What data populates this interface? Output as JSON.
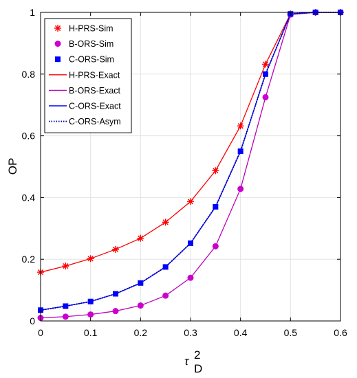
{
  "chart_data": {
    "type": "line",
    "xlabel": "τ",
    "xlabel_superscript": "2",
    "xlabel_subscript": "D",
    "ylabel": "OP",
    "xlim": [
      0,
      0.6
    ],
    "ylim": [
      0,
      1
    ],
    "xticks": [
      "0",
      "0.1",
      "0.2",
      "0.3",
      "0.4",
      "0.5",
      "0.6"
    ],
    "yticks": [
      "0",
      "0.2",
      "0.4",
      "0.6",
      "0.8",
      "1"
    ],
    "grid": true,
    "legend_position": "top-left",
    "x": [
      0,
      0.05,
      0.1,
      0.15,
      0.2,
      0.25,
      0.3,
      0.35,
      0.4,
      0.45,
      0.5,
      0.55,
      0.6
    ],
    "series": [
      {
        "name": "H-PRS-Sim",
        "style": "marker",
        "marker": "asterisk",
        "color": "#ff0000",
        "values": [
          0.158,
          0.178,
          0.202,
          0.232,
          0.268,
          0.32,
          0.387,
          0.487,
          0.632,
          0.832,
          0.995,
          1.0,
          1.0
        ]
      },
      {
        "name": "B-ORS-Sim",
        "style": "marker",
        "marker": "circle",
        "color": "#cc00cc",
        "values": [
          0.01,
          0.014,
          0.021,
          0.032,
          0.05,
          0.082,
          0.14,
          0.242,
          0.428,
          0.725,
          0.993,
          1.0,
          1.0
        ]
      },
      {
        "name": "C-ORS-Sim",
        "style": "marker",
        "marker": "square",
        "color": "#0000ff",
        "values": [
          0.035,
          0.048,
          0.063,
          0.088,
          0.123,
          0.175,
          0.252,
          0.37,
          0.55,
          0.8,
          0.995,
          1.0,
          1.0
        ]
      },
      {
        "name": "H-PRS-Exact",
        "style": "line",
        "dash": "solid",
        "color": "#ff0000",
        "values": [
          0.158,
          0.178,
          0.202,
          0.232,
          0.268,
          0.32,
          0.387,
          0.487,
          0.632,
          0.832,
          0.995,
          1.0,
          1.0
        ]
      },
      {
        "name": "B-ORS-Exact",
        "style": "line",
        "dash": "solid",
        "color": "#bb00bb",
        "values": [
          0.01,
          0.014,
          0.021,
          0.032,
          0.05,
          0.082,
          0.14,
          0.242,
          0.428,
          0.725,
          0.993,
          1.0,
          1.0
        ]
      },
      {
        "name": "C-ORS-Exact",
        "style": "line",
        "dash": "solid",
        "color": "#0000ff",
        "values": [
          0.035,
          0.048,
          0.063,
          0.088,
          0.123,
          0.175,
          0.252,
          0.37,
          0.55,
          0.8,
          0.995,
          1.0,
          1.0
        ]
      },
      {
        "name": "C-ORS-Asym",
        "style": "line",
        "dash": "dotted",
        "color": "#0000aa",
        "values": [
          0.035,
          0.048,
          0.063,
          0.088,
          0.123,
          0.175,
          0.252,
          0.37,
          0.55,
          0.8,
          0.995,
          1.0,
          1.0
        ]
      }
    ]
  }
}
